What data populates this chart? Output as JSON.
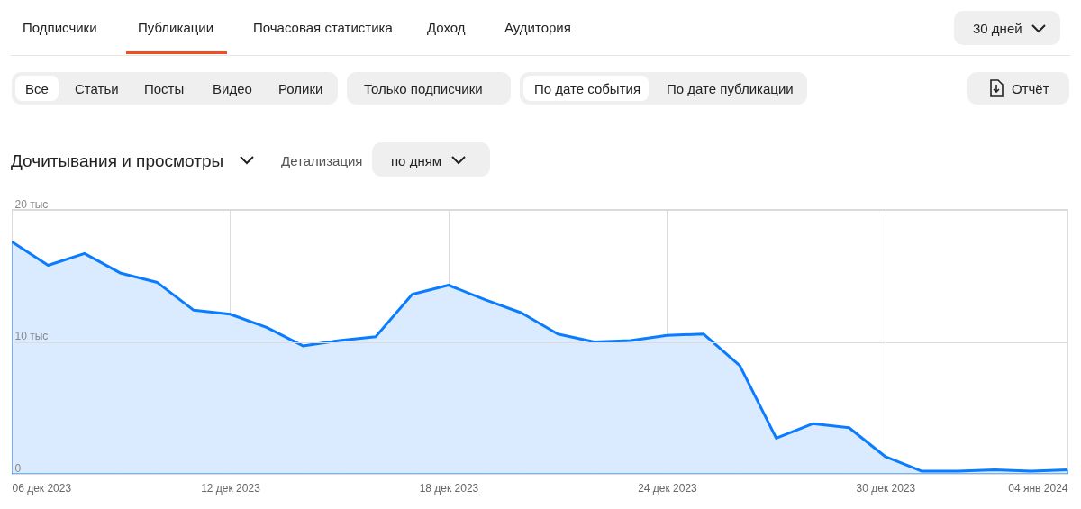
{
  "chart_data": {
    "type": "area",
    "title": "Дочитывания и просмотры",
    "annotations": [
      "Подписчики",
      "Публикации",
      "Почасовая статистика",
      "Доход",
      "Аудитория",
      "30 дней",
      "Все",
      "Статьи",
      "Посты",
      "Видео",
      "Ролики",
      "Только подписчики",
      "По дате события",
      "По дате публикации",
      "Отчёт",
      "Детализация",
      "по дням"
    ],
    "x": [
      "2023-12-06",
      "2023-12-07",
      "2023-12-08",
      "2023-12-09",
      "2023-12-10",
      "2023-12-11",
      "2023-12-12",
      "2023-12-13",
      "2023-12-14",
      "2023-12-15",
      "2023-12-16",
      "2023-12-17",
      "2023-12-18",
      "2023-12-19",
      "2023-12-20",
      "2023-12-21",
      "2023-12-22",
      "2023-12-23",
      "2023-12-24",
      "2023-12-25",
      "2023-12-26",
      "2023-12-27",
      "2023-12-28",
      "2023-12-29",
      "2023-12-30",
      "2023-12-31",
      "2024-01-01",
      "2024-01-02",
      "2024-01-03",
      "2024-01-04"
    ],
    "series": [
      {
        "color": "#0a7cff",
        "values": [
          17.6,
          15.8,
          16.7,
          15.2,
          14.5,
          12.4,
          12.1,
          11.1,
          9.7,
          10.1,
          10.4,
          13.6,
          14.3,
          13.2,
          12.2,
          10.6,
          10.0,
          10.1,
          10.5,
          10.6,
          8.2,
          2.7,
          3.8,
          3.5,
          1.3,
          0.2,
          0.2,
          0.3,
          0.2,
          0.3
        ]
      }
    ],
    "ylim": [
      0,
      20
    ],
    "yticks": [
      0,
      {
        "value": 10,
        "label": "10 тыс"
      },
      {
        "value": 20,
        "label": "20 тыс"
      }
    ],
    "xlim": [
      "2023-12-06",
      "2024-01-04"
    ],
    "xticks": [
      {
        "value": "2023-12-06",
        "label": "06 дек 2023"
      },
      {
        "value": "2023-12-12",
        "label": "12 дек 2023"
      },
      {
        "value": "2023-12-18",
        "label": "18 дек 2023"
      },
      {
        "value": "2023-12-24",
        "label": "24 дек 2023"
      },
      {
        "value": "2023-12-30",
        "label": "30 дек 2023"
      },
      {
        "value": "2024-01-04",
        "label": "04 янв 2024"
      }
    ],
    "grid": true
  }
}
